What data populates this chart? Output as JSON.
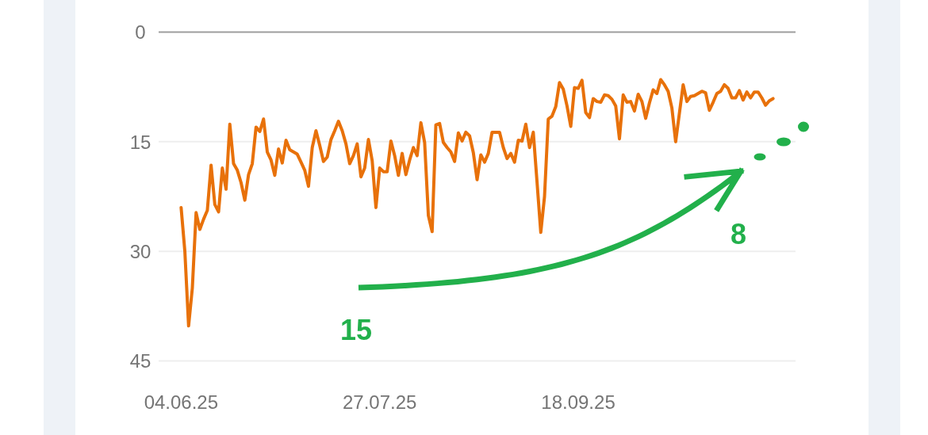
{
  "chart_data": {
    "type": "line",
    "x": [
      "2025-06-04",
      "2025-06-05",
      "2025-06-06",
      "2025-06-07",
      "2025-06-08",
      "2025-06-09",
      "2025-06-10",
      "2025-06-11",
      "2025-06-12",
      "2025-06-13",
      "2025-06-14",
      "2025-06-15",
      "2025-06-16",
      "2025-06-17",
      "2025-06-18",
      "2025-06-19",
      "2025-06-20",
      "2025-06-21",
      "2025-06-22",
      "2025-06-23",
      "2025-06-24",
      "2025-06-25",
      "2025-06-26",
      "2025-06-27",
      "2025-06-28",
      "2025-06-29",
      "2025-06-30",
      "2025-07-01",
      "2025-07-02",
      "2025-07-03",
      "2025-07-04",
      "2025-07-05",
      "2025-07-06",
      "2025-07-07",
      "2025-07-08",
      "2025-07-09",
      "2025-07-10",
      "2025-07-11",
      "2025-07-12",
      "2025-07-13",
      "2025-07-14",
      "2025-07-15",
      "2025-07-16",
      "2025-07-17",
      "2025-07-18",
      "2025-07-19",
      "2025-07-20",
      "2025-07-21",
      "2025-07-22",
      "2025-07-23",
      "2025-07-24",
      "2025-07-25",
      "2025-07-26",
      "2025-07-27",
      "2025-07-28",
      "2025-07-29",
      "2025-07-30",
      "2025-07-31",
      "2025-08-01",
      "2025-08-02",
      "2025-08-03",
      "2025-08-04",
      "2025-08-05",
      "2025-08-06",
      "2025-08-07",
      "2025-08-08",
      "2025-08-09",
      "2025-08-10",
      "2025-08-11",
      "2025-08-12",
      "2025-08-13",
      "2025-08-14",
      "2025-08-15",
      "2025-08-16",
      "2025-08-17",
      "2025-08-18",
      "2025-08-19",
      "2025-08-20",
      "2025-08-21",
      "2025-08-22",
      "2025-08-23",
      "2025-08-24",
      "2025-08-25",
      "2025-08-26",
      "2025-08-27",
      "2025-08-28",
      "2025-08-29",
      "2025-08-30",
      "2025-08-31",
      "2025-09-01",
      "2025-09-02",
      "2025-09-03",
      "2025-09-04",
      "2025-09-05",
      "2025-09-06",
      "2025-09-07",
      "2025-09-08",
      "2025-09-09",
      "2025-09-10",
      "2025-09-11",
      "2025-09-12",
      "2025-09-13",
      "2025-09-14",
      "2025-09-15",
      "2025-09-16",
      "2025-09-17",
      "2025-09-18",
      "2025-09-19",
      "2025-09-20",
      "2025-09-21",
      "2025-09-22",
      "2025-09-23",
      "2025-09-24",
      "2025-09-25",
      "2025-09-26",
      "2025-09-27",
      "2025-09-28",
      "2025-09-29",
      "2025-09-30",
      "2025-10-01",
      "2025-10-02",
      "2025-10-03",
      "2025-10-04",
      "2025-10-05",
      "2025-10-06",
      "2025-10-07",
      "2025-10-08",
      "2025-10-09",
      "2025-10-10",
      "2025-10-11",
      "2025-10-12",
      "2025-10-13",
      "2025-10-14",
      "2025-10-15",
      "2025-10-16",
      "2025-10-17",
      "2025-10-18",
      "2025-10-19",
      "2025-10-20",
      "2025-10-21",
      "2025-10-22",
      "2025-10-23",
      "2025-10-24",
      "2025-10-25",
      "2025-10-26",
      "2025-10-27",
      "2025-10-28",
      "2025-10-29",
      "2025-10-30",
      "2025-10-31",
      "2025-11-01",
      "2025-11-02",
      "2025-11-03",
      "2025-11-04",
      "2025-11-05",
      "2025-11-06",
      "2025-11-07",
      "2025-11-08",
      "2025-11-09"
    ],
    "series": [
      {
        "color": "#e8710a",
        "values": [
          24.0,
          30.0,
          40.2,
          35.0,
          24.7,
          27.0,
          25.6,
          24.4,
          18.2,
          23.6,
          24.6,
          18.6,
          21.5,
          12.6,
          18.0,
          18.9,
          20.6,
          23.0,
          19.5,
          18.0,
          13.0,
          13.6,
          11.9,
          16.4,
          17.5,
          19.6,
          16.0,
          17.9,
          14.8,
          16.1,
          16.4,
          16.7,
          17.8,
          18.9,
          21.1,
          15.8,
          13.5,
          15.5,
          17.7,
          17.1,
          14.7,
          13.5,
          12.2,
          13.5,
          15.3,
          18.0,
          16.9,
          15.3,
          19.8,
          18.6,
          14.7,
          17.6,
          24.0,
          18.6,
          19.1,
          19.1,
          14.9,
          16.9,
          19.6,
          16.6,
          19.5,
          17.5,
          15.8,
          16.9,
          12.4,
          15.1,
          25.1,
          27.3,
          12.7,
          12.5,
          15.1,
          15.8,
          16.4,
          17.7,
          13.8,
          14.9,
          13.7,
          14.2,
          16.5,
          20.2,
          16.8,
          17.8,
          16.6,
          13.7,
          13.7,
          13.7,
          15.8,
          17.3,
          16.6,
          17.8,
          14.8,
          14.9,
          12.6,
          15.8,
          13.7,
          20.5,
          27.4,
          22.5,
          11.9,
          11.5,
          10.2,
          6.9,
          7.8,
          10.1,
          12.9,
          7.6,
          7.7,
          6.6,
          11.0,
          11.7,
          9.1,
          9.5,
          9.6,
          8.6,
          8.7,
          9.2,
          10.1,
          14.6,
          8.6,
          9.6,
          9.5,
          10.8,
          8.5,
          9.5,
          11.8,
          9.7,
          7.9,
          8.4,
          6.5,
          7.2,
          8.1,
          10.4,
          15.0,
          11.1,
          7.2,
          9.5,
          8.8,
          8.7,
          8.4,
          8.1,
          8.3,
          10.7,
          9.6,
          8.4,
          8.1,
          7.2,
          7.7,
          9.0,
          9.0,
          8.0,
          9.3,
          8.2,
          9.0,
          8.2,
          8.2,
          9.0,
          10.0,
          9.4,
          9.1
        ]
      }
    ],
    "xlim": [
      "2025-05-29",
      "2025-11-15"
    ],
    "xticks": [
      {
        "value": "2025-06-04",
        "label": "04.06.25"
      },
      {
        "value": "2025-07-27",
        "label": "27.07.25"
      },
      {
        "value": "2025-09-18",
        "label": "18.09.25"
      }
    ],
    "ylim": [
      45,
      0
    ],
    "yticks": [
      0,
      15,
      30,
      45
    ],
    "grid": "y",
    "annotations": [
      "15",
      "8"
    ]
  }
}
